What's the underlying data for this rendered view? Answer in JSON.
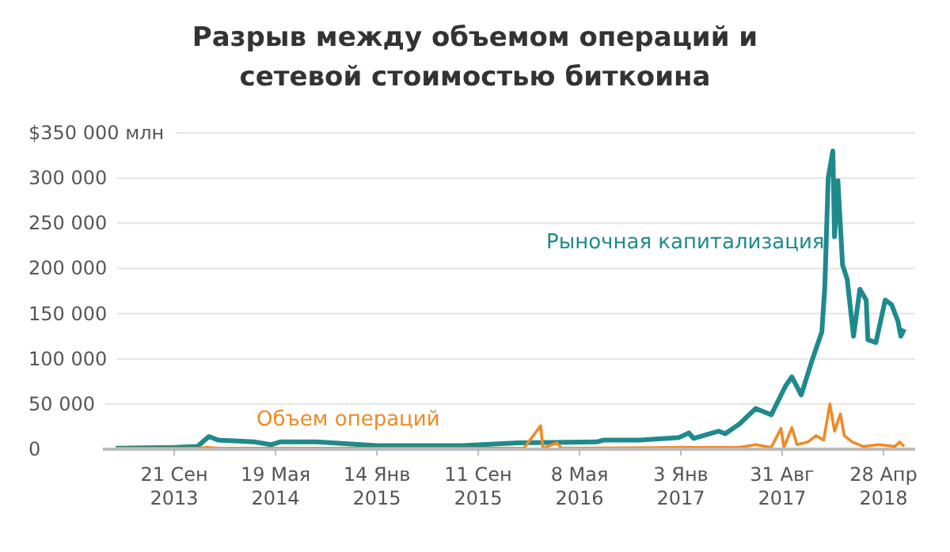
{
  "chart_data": {
    "type": "line",
    "title": "Разрыв между объемом операций и сетевой стоимостью биткоина",
    "series": [
      {
        "name": "Рыночная капитализация",
        "color": "#1f8a8c",
        "x": [
          "2013-05-05",
          "2013-09-21",
          "2013-11-15",
          "2013-12-12",
          "2014-01-04",
          "2014-03-31",
          "2014-05-08",
          "2014-05-30",
          "2014-08-24",
          "2015-01-14",
          "2015-08-04",
          "2015-12-13",
          "2016-06-18",
          "2016-07-03",
          "2016-09-28",
          "2016-12-30",
          "2017-01-22",
          "2017-02-02",
          "2017-04-03",
          "2017-04-18",
          "2017-05-22",
          "2017-06-29",
          "2017-08-05",
          "2017-09-08",
          "2017-09-23",
          "2017-10-15",
          "2017-11-11",
          "2017-12-03",
          "2017-12-10",
          "2017-12-18",
          "2017-12-29",
          "2018-01-02",
          "2018-01-10",
          "2018-01-21",
          "2018-02-01",
          "2018-02-16",
          "2018-03-03",
          "2018-03-18",
          "2018-03-22",
          "2018-04-10",
          "2018-05-02",
          "2018-05-17",
          "2018-06-01",
          "2018-06-08",
          "2018-06-16"
        ],
        "values": [
          1000,
          2000,
          3000,
          14000,
          10000,
          8000,
          5000,
          8000,
          8000,
          4000,
          4000,
          7000,
          8000,
          10000,
          10000,
          13000,
          18000,
          12000,
          20000,
          17000,
          28000,
          45000,
          38000,
          70000,
          80000,
          60000,
          100000,
          130000,
          180000,
          300000,
          330000,
          235000,
          297000,
          204000,
          188000,
          125000,
          177000,
          165000,
          121000,
          118000,
          165000,
          160000,
          142000,
          125000,
          133000
        ]
      },
      {
        "name": "Объем операций",
        "color": "#f08a24",
        "x": [
          "2013-05-05",
          "2013-11-15",
          "2013-12-08",
          "2014-01-04",
          "2014-08-24",
          "2015-08-04",
          "2015-12-28",
          "2016-02-06",
          "2016-02-11",
          "2016-03-15",
          "2016-03-27",
          "2017-01-03",
          "2017-05-22",
          "2017-06-29",
          "2017-08-05",
          "2017-08-28",
          "2017-09-04",
          "2017-09-23",
          "2017-10-05",
          "2017-10-31",
          "2017-11-19",
          "2017-12-07",
          "2017-12-22",
          "2018-01-02",
          "2018-01-16",
          "2018-01-25",
          "2018-02-13",
          "2018-03-11",
          "2018-04-17",
          "2018-05-25",
          "2018-06-05",
          "2018-06-16"
        ],
        "values": [
          1000,
          1000,
          2000,
          1000,
          1000,
          1000,
          1000,
          26000,
          1000,
          7000,
          1000,
          2000,
          2000,
          5000,
          2000,
          23000,
          2000,
          24000,
          5000,
          8000,
          15000,
          10000,
          50000,
          20000,
          39000,
          15000,
          8000,
          3000,
          5000,
          3000,
          8000,
          3000
        ]
      }
    ],
    "xlim": [
      "2013-04-05",
      "2018-07-12"
    ],
    "xticks": [
      {
        "value": "2013-09-21",
        "label": "21 Сен\n2013"
      },
      {
        "value": "2014-05-19",
        "label": "19 Мая\n2014"
      },
      {
        "value": "2015-01-14",
        "label": "14 Янв\n2015"
      },
      {
        "value": "2015-09-11",
        "label": "11 Сен\n2015"
      },
      {
        "value": "2016-05-08",
        "label": "8 Мая\n2016"
      },
      {
        "value": "2017-01-03",
        "label": "3 Янв\n2017"
      },
      {
        "value": "2017-08-31",
        "label": "31 Авг\n2017"
      },
      {
        "value": "2018-04-28",
        "label": "28 Апр\n2018"
      }
    ],
    "ylim": [
      0,
      350000
    ],
    "yticks": [
      0,
      {
        "value": 50000,
        "label": "50 000"
      },
      {
        "value": 100000,
        "label": "100 000"
      },
      {
        "value": 150000,
        "label": "150 000"
      },
      {
        "value": 200000,
        "label": "200 000"
      },
      {
        "value": 250000,
        "label": "250 000"
      },
      {
        "value": 300000,
        "label": "300 000"
      },
      {
        "value": 350000,
        "label": "$350 000 млн"
      }
    ],
    "grid": "y",
    "legend": false,
    "marker": "none",
    "line_style": "solid"
  }
}
